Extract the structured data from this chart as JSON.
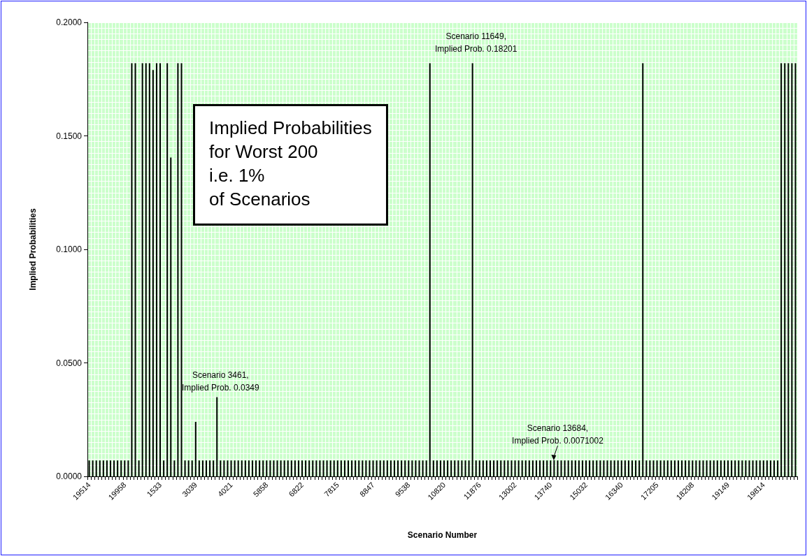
{
  "chart_data": {
    "type": "bar",
    "title": "Implied Probabilities\nfor Worst 200\ni.e. 1%\nof Scenarios",
    "xlabel": "Scenario Number",
    "ylabel": "Implied Probabilities",
    "annotations": [
      "Scenario 3461,\nImplied Prob. 0.0349",
      "Scenario 11649,\nImplied Prob. 0.18201",
      "Scenario 13684,\nImplied Prob. 0.0071002"
    ],
    "categories": [
      "19514",
      null,
      null,
      null,
      null,
      null,
      null,
      null,
      null,
      null,
      "19958",
      null,
      null,
      null,
      null,
      null,
      null,
      null,
      null,
      null,
      "1533",
      null,
      null,
      null,
      null,
      null,
      null,
      null,
      null,
      null,
      "3039",
      null,
      null,
      null,
      null,
      null,
      null,
      null,
      null,
      null,
      "4021",
      null,
      null,
      null,
      null,
      null,
      null,
      null,
      null,
      null,
      "5858",
      null,
      null,
      null,
      null,
      null,
      null,
      null,
      null,
      null,
      "6822",
      null,
      null,
      null,
      null,
      null,
      null,
      null,
      null,
      null,
      "7815",
      null,
      null,
      null,
      null,
      null,
      null,
      null,
      null,
      null,
      "8847",
      null,
      null,
      null,
      null,
      null,
      null,
      null,
      null,
      null,
      "9538",
      null,
      null,
      null,
      null,
      null,
      null,
      null,
      null,
      null,
      "10820",
      null,
      null,
      null,
      null,
      null,
      null,
      null,
      null,
      null,
      "11876",
      null,
      null,
      null,
      null,
      null,
      null,
      null,
      null,
      null,
      "13002",
      null,
      null,
      null,
      null,
      null,
      null,
      null,
      null,
      null,
      "13740",
      null,
      null,
      null,
      null,
      null,
      null,
      null,
      null,
      null,
      "15032",
      null,
      null,
      null,
      null,
      null,
      null,
      null,
      null,
      null,
      "16340",
      null,
      null,
      null,
      null,
      null,
      null,
      null,
      null,
      null,
      "17205",
      null,
      null,
      null,
      null,
      null,
      null,
      null,
      null,
      null,
      "18208",
      null,
      null,
      null,
      null,
      null,
      null,
      null,
      null,
      null,
      "19149",
      null,
      null,
      null,
      null,
      null,
      null,
      null,
      null,
      null,
      "19814",
      null,
      null,
      null,
      null,
      null,
      null,
      null,
      null,
      null
    ],
    "values": [
      0.007,
      0.007,
      0.007,
      0.007,
      0.007,
      0.007,
      0.007,
      0.007,
      0.007,
      0.007,
      0.007,
      0.007,
      0.182,
      0.182,
      0.007,
      0.182,
      0.182,
      0.182,
      0.179,
      0.182,
      0.182,
      0.007,
      0.182,
      0.1405,
      0.007,
      0.182,
      0.182,
      0.007,
      0.007,
      0.007,
      0.024,
      0.007,
      0.007,
      0.007,
      0.007,
      0.007,
      0.0349,
      0.007,
      0.007,
      0.007,
      0.007,
      0.007,
      0.007,
      0.007,
      0.007,
      0.007,
      0.007,
      0.007,
      0.007,
      0.007,
      0.007,
      0.007,
      0.007,
      0.007,
      0.007,
      0.007,
      0.007,
      0.007,
      0.007,
      0.007,
      0.007,
      0.007,
      0.007,
      0.007,
      0.007,
      0.007,
      0.007,
      0.007,
      0.007,
      0.007,
      0.007,
      0.007,
      0.007,
      0.007,
      0.007,
      0.007,
      0.007,
      0.007,
      0.007,
      0.007,
      0.007,
      0.007,
      0.007,
      0.007,
      0.007,
      0.007,
      0.007,
      0.007,
      0.007,
      0.007,
      0.007,
      0.007,
      0.007,
      0.007,
      0.007,
      0.007,
      0.182,
      0.007,
      0.007,
      0.007,
      0.007,
      0.007,
      0.007,
      0.007,
      0.007,
      0.007,
      0.007,
      0.007,
      0.18201,
      0.007,
      0.007,
      0.007,
      0.007,
      0.007,
      0.007,
      0.007,
      0.007,
      0.007,
      0.007,
      0.007,
      0.007,
      0.007,
      0.007,
      0.007,
      0.007,
      0.007,
      0.007,
      0.007,
      0.007,
      0.007,
      0.007,
      0.0071002,
      0.007,
      0.007,
      0.007,
      0.007,
      0.007,
      0.007,
      0.007,
      0.007,
      0.007,
      0.007,
      0.007,
      0.007,
      0.007,
      0.007,
      0.007,
      0.007,
      0.007,
      0.007,
      0.007,
      0.007,
      0.007,
      0.007,
      0.007,
      0.007,
      0.182,
      0.007,
      0.007,
      0.007,
      0.007,
      0.007,
      0.007,
      0.007,
      0.007,
      0.007,
      0.007,
      0.007,
      0.007,
      0.007,
      0.007,
      0.007,
      0.007,
      0.007,
      0.007,
      0.007,
      0.007,
      0.007,
      0.007,
      0.007,
      0.007,
      0.007,
      0.007,
      0.007,
      0.007,
      0.007,
      0.007,
      0.007,
      0.007,
      0.007,
      0.007,
      0.007,
      0.007,
      0.007,
      0.007,
      0.182,
      0.182,
      0.182,
      0.182,
      0.182
    ],
    "color": "#000000",
    "ylim": [
      0,
      0.2
    ],
    "yticks": [
      {
        "value": 0,
        "label": "0.0000"
      },
      {
        "value": 0.05,
        "label": "0.0500"
      },
      {
        "value": 0.1,
        "label": "0.1000"
      },
      {
        "value": 0.15,
        "label": "0.1500"
      },
      {
        "value": 0.2,
        "label": "0.2000"
      }
    ],
    "grid": true
  }
}
